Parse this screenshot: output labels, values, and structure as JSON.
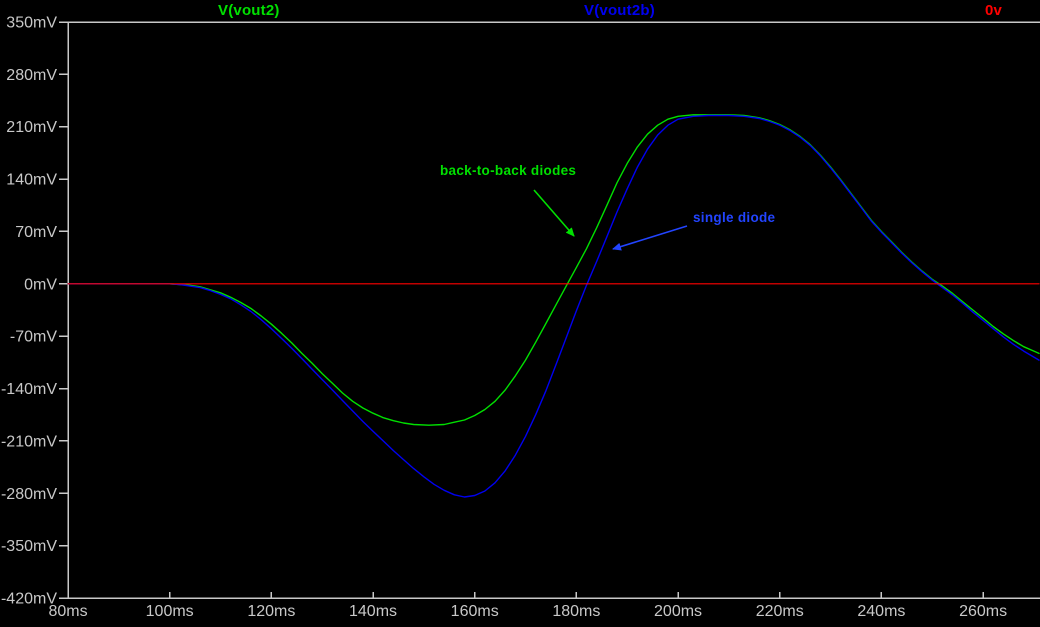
{
  "window": {
    "background": "#000000",
    "axis_color": "#c8c8c8"
  },
  "legend": [
    {
      "label": "V(vout2)",
      "color": "#00e000"
    },
    {
      "label": "V(vout2b)",
      "color": "#0000f0"
    },
    {
      "label": "0v",
      "color": "#ff0000"
    }
  ],
  "annotations": [
    {
      "text": "back-to-back diodes",
      "color": "#00e000"
    },
    {
      "text": "single diode",
      "color": "#2244ff"
    }
  ],
  "chart_data": {
    "type": "line",
    "title": "",
    "xlabel": "",
    "ylabel": "",
    "x_unit": "ms",
    "y_unit": "mV",
    "xlim": [
      80,
      271
    ],
    "ylim": [
      -420,
      350
    ],
    "grid": false,
    "legend_position": "top",
    "x_ticks": [
      {
        "v": 80,
        "label": "80ms"
      },
      {
        "v": 100,
        "label": "100ms"
      },
      {
        "v": 120,
        "label": "120ms"
      },
      {
        "v": 140,
        "label": "140ms"
      },
      {
        "v": 160,
        "label": "160ms"
      },
      {
        "v": 180,
        "label": "180ms"
      },
      {
        "v": 200,
        "label": "200ms"
      },
      {
        "v": 220,
        "label": "220ms"
      },
      {
        "v": 240,
        "label": "240ms"
      },
      {
        "v": 260,
        "label": "260ms"
      }
    ],
    "y_ticks": [
      {
        "v": 350,
        "label": "350mV"
      },
      {
        "v": 280,
        "label": "280mV"
      },
      {
        "v": 210,
        "label": "210mV"
      },
      {
        "v": 140,
        "label": "140mV"
      },
      {
        "v": 70,
        "label": "70mV"
      },
      {
        "v": 0,
        "label": "0mV"
      },
      {
        "v": -70,
        "label": "-70mV"
      },
      {
        "v": -140,
        "label": "-140mV"
      },
      {
        "v": -210,
        "label": "-210mV"
      },
      {
        "v": -280,
        "label": "-280mV"
      },
      {
        "v": -350,
        "label": "-350mV"
      },
      {
        "v": -420,
        "label": "-420mV"
      }
    ],
    "series": [
      {
        "name": "V(vout2)",
        "description": "back-to-back diodes",
        "color": "#00e000",
        "points": [
          [
            80,
            0
          ],
          [
            95,
            0
          ],
          [
            100,
            0
          ],
          [
            102,
            -1
          ],
          [
            104,
            -2
          ],
          [
            106,
            -4
          ],
          [
            108,
            -8
          ],
          [
            110,
            -12
          ],
          [
            112,
            -18
          ],
          [
            114,
            -25
          ],
          [
            116,
            -33
          ],
          [
            118,
            -43
          ],
          [
            120,
            -54
          ],
          [
            122,
            -66
          ],
          [
            124,
            -79
          ],
          [
            126,
            -93
          ],
          [
            128,
            -106
          ],
          [
            130,
            -120
          ],
          [
            132,
            -133
          ],
          [
            134,
            -146
          ],
          [
            136,
            -157
          ],
          [
            138,
            -166
          ],
          [
            140,
            -173
          ],
          [
            142,
            -179
          ],
          [
            144,
            -183
          ],
          [
            146,
            -186
          ],
          [
            148,
            -188
          ],
          [
            151,
            -189
          ],
          [
            154,
            -188
          ],
          [
            156,
            -185
          ],
          [
            158,
            -182
          ],
          [
            160,
            -176
          ],
          [
            162,
            -168
          ],
          [
            164,
            -157
          ],
          [
            166,
            -142
          ],
          [
            168,
            -123
          ],
          [
            170,
            -102
          ],
          [
            172,
            -78
          ],
          [
            174,
            -53
          ],
          [
            176,
            -28
          ],
          [
            178,
            -3
          ],
          [
            180,
            22
          ],
          [
            182,
            47
          ],
          [
            184,
            75
          ],
          [
            186,
            105
          ],
          [
            188,
            135
          ],
          [
            190,
            161
          ],
          [
            192,
            183
          ],
          [
            194,
            200
          ],
          [
            196,
            212
          ],
          [
            198,
            220
          ],
          [
            200,
            224
          ],
          [
            203,
            226
          ],
          [
            206,
            226
          ],
          [
            210,
            226
          ],
          [
            213,
            225
          ],
          [
            216,
            222
          ],
          [
            218,
            218
          ],
          [
            220,
            213
          ],
          [
            222,
            206
          ],
          [
            224,
            197
          ],
          [
            226,
            186
          ],
          [
            228,
            172
          ],
          [
            230,
            156
          ],
          [
            232,
            139
          ],
          [
            234,
            121
          ],
          [
            236,
            103
          ],
          [
            238,
            85
          ],
          [
            240,
            70
          ],
          [
            242,
            56
          ],
          [
            244,
            42
          ],
          [
            246,
            29
          ],
          [
            248,
            17
          ],
          [
            250,
            6
          ],
          [
            252,
            -3
          ],
          [
            254,
            -13
          ],
          [
            256,
            -24
          ],
          [
            258,
            -35
          ],
          [
            260,
            -46
          ],
          [
            262,
            -57
          ],
          [
            264,
            -67
          ],
          [
            266,
            -76
          ],
          [
            268,
            -84
          ],
          [
            270,
            -90
          ],
          [
            271,
            -93
          ]
        ]
      },
      {
        "name": "V(vout2b)",
        "description": "single diode",
        "color": "#0000f0",
        "points": [
          [
            80,
            0
          ],
          [
            95,
            0
          ],
          [
            100,
            0
          ],
          [
            102,
            -1
          ],
          [
            104,
            -3
          ],
          [
            106,
            -5
          ],
          [
            108,
            -9
          ],
          [
            110,
            -14
          ],
          [
            112,
            -20
          ],
          [
            114,
            -28
          ],
          [
            116,
            -37
          ],
          [
            118,
            -48
          ],
          [
            120,
            -60
          ],
          [
            122,
            -73
          ],
          [
            124,
            -86
          ],
          [
            126,
            -100
          ],
          [
            128,
            -114
          ],
          [
            130,
            -128
          ],
          [
            132,
            -142
          ],
          [
            134,
            -156
          ],
          [
            136,
            -170
          ],
          [
            138,
            -184
          ],
          [
            140,
            -197
          ],
          [
            142,
            -210
          ],
          [
            144,
            -223
          ],
          [
            146,
            -235
          ],
          [
            148,
            -247
          ],
          [
            150,
            -258
          ],
          [
            152,
            -268
          ],
          [
            154,
            -276
          ],
          [
            156,
            -282
          ],
          [
            158,
            -285
          ],
          [
            160,
            -283
          ],
          [
            162,
            -277
          ],
          [
            164,
            -266
          ],
          [
            166,
            -250
          ],
          [
            168,
            -229
          ],
          [
            170,
            -204
          ],
          [
            172,
            -175
          ],
          [
            174,
            -143
          ],
          [
            176,
            -108
          ],
          [
            178,
            -72
          ],
          [
            180,
            -36
          ],
          [
            182,
            -2
          ],
          [
            184,
            30
          ],
          [
            186,
            63
          ],
          [
            188,
            96
          ],
          [
            190,
            127
          ],
          [
            192,
            156
          ],
          [
            194,
            180
          ],
          [
            196,
            199
          ],
          [
            198,
            212
          ],
          [
            200,
            220
          ],
          [
            203,
            224
          ],
          [
            206,
            225
          ],
          [
            210,
            225
          ],
          [
            213,
            224
          ],
          [
            216,
            221
          ],
          [
            218,
            217
          ],
          [
            220,
            212
          ],
          [
            222,
            205
          ],
          [
            224,
            196
          ],
          [
            226,
            185
          ],
          [
            228,
            171
          ],
          [
            230,
            155
          ],
          [
            232,
            138
          ],
          [
            234,
            120
          ],
          [
            236,
            102
          ],
          [
            238,
            84
          ],
          [
            240,
            69
          ],
          [
            242,
            55
          ],
          [
            244,
            41
          ],
          [
            246,
            28
          ],
          [
            248,
            16
          ],
          [
            250,
            5
          ],
          [
            252,
            -5
          ],
          [
            254,
            -15
          ],
          [
            256,
            -26
          ],
          [
            258,
            -38
          ],
          [
            260,
            -49
          ],
          [
            262,
            -60
          ],
          [
            264,
            -71
          ],
          [
            266,
            -81
          ],
          [
            268,
            -90
          ],
          [
            270,
            -98
          ],
          [
            271,
            -102
          ]
        ]
      },
      {
        "name": "0v",
        "description": "zero reference",
        "color": "#ff0000",
        "points": [
          [
            80,
            0
          ],
          [
            271,
            0
          ]
        ]
      }
    ]
  }
}
